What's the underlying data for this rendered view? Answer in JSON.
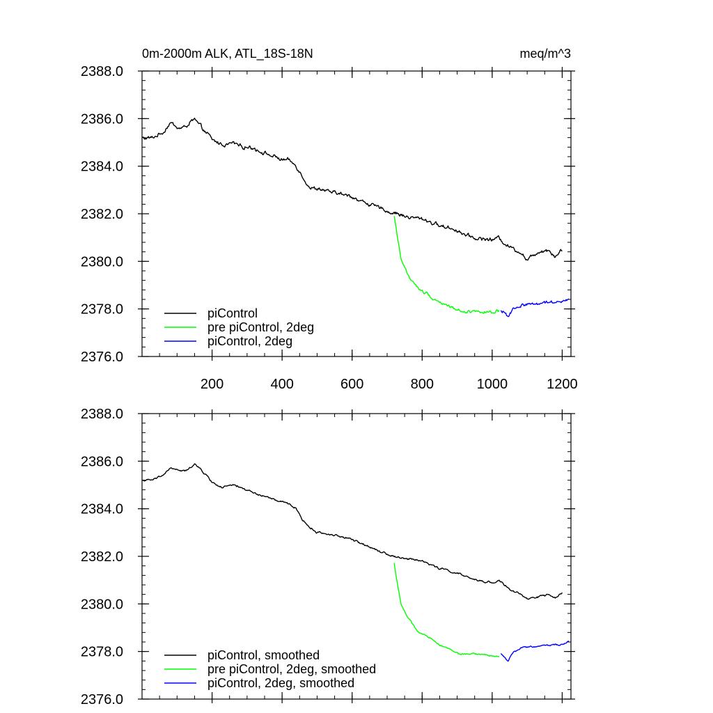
{
  "chart_data": [
    {
      "type": "line",
      "title_left": "0m-2000m ALK, ATL_18S-18N",
      "title_right": "meq/m^3",
      "xlim": [
        0,
        1225
      ],
      "ylim": [
        2376.0,
        2388.0
      ],
      "x_ticks": [
        200,
        400,
        600,
        800,
        1000,
        1200
      ],
      "x_tick_labels": [
        "200",
        "400",
        "600",
        "800",
        "1000",
        "1200"
      ],
      "y_ticks": [
        2376.0,
        2378.0,
        2380.0,
        2382.0,
        2384.0,
        2386.0,
        2388.0
      ],
      "y_tick_labels": [
        "2376.0",
        "2378.0",
        "2380.0",
        "2382.0",
        "2384.0",
        "2386.0",
        "2388.0"
      ],
      "legend_position": "bottom-left",
      "series": [
        {
          "name": "piControl",
          "color": "#000000",
          "noise": 0.18,
          "x": [
            0,
            30,
            60,
            80,
            110,
            130,
            150,
            170,
            190,
            200,
            230,
            260,
            300,
            330,
            360,
            390,
            420,
            440,
            460,
            480,
            500,
            550,
            600,
            650,
            700,
            750,
            800,
            850,
            900,
            950,
            1000,
            1020,
            1050,
            1080,
            1100,
            1130,
            1160,
            1180,
            1200
          ],
          "y": [
            2385.2,
            2385.2,
            2385.4,
            2385.8,
            2385.6,
            2385.7,
            2386.0,
            2385.6,
            2385.3,
            2385.1,
            2384.9,
            2385.0,
            2384.8,
            2384.7,
            2384.5,
            2384.3,
            2384.2,
            2384.0,
            2383.5,
            2383.1,
            2383.0,
            2382.9,
            2382.7,
            2382.4,
            2382.1,
            2381.9,
            2381.8,
            2381.5,
            2381.3,
            2381.0,
            2380.9,
            2381.0,
            2380.6,
            2380.4,
            2380.1,
            2380.4,
            2380.5,
            2380.2,
            2380.5
          ]
        },
        {
          "name": "pre piControl, 2deg",
          "color": "#00ff00",
          "noise": 0.14,
          "x": [
            720,
            730,
            740,
            760,
            790,
            820,
            850,
            880,
            910,
            940,
            970,
            1000,
            1020
          ],
          "y": [
            2381.9,
            2381.0,
            2380.1,
            2379.4,
            2378.8,
            2378.6,
            2378.3,
            2378.1,
            2377.9,
            2377.9,
            2377.9,
            2377.8,
            2377.9
          ]
        },
        {
          "name": "piControl, 2deg",
          "color": "#0000ff",
          "noise": 0.16,
          "x": [
            1025,
            1045,
            1060,
            1090,
            1120,
            1150,
            1180,
            1200,
            1220
          ],
          "y": [
            2377.9,
            2377.7,
            2378.0,
            2378.2,
            2378.2,
            2378.3,
            2378.3,
            2378.4,
            2378.4
          ]
        }
      ]
    },
    {
      "type": "line",
      "title_left": "",
      "title_right": "",
      "xlim": [
        0,
        1225
      ],
      "ylim": [
        2376.0,
        2388.0
      ],
      "x_ticks": [
        200,
        400,
        600,
        800,
        1000,
        1200
      ],
      "x_tick_labels": [],
      "y_ticks": [
        2376.0,
        2378.0,
        2380.0,
        2382.0,
        2384.0,
        2386.0,
        2388.0
      ],
      "y_tick_labels": [
        "2376.0",
        "2378.0",
        "2380.0",
        "2382.0",
        "2384.0",
        "2386.0",
        "2388.0"
      ],
      "legend_position": "bottom-left",
      "series": [
        {
          "name": "piControl, smoothed",
          "color": "#000000",
          "noise": 0.09,
          "x": [
            0,
            30,
            60,
            80,
            110,
            130,
            150,
            170,
            190,
            200,
            230,
            260,
            300,
            330,
            360,
            390,
            420,
            440,
            460,
            480,
            500,
            550,
            600,
            650,
            700,
            750,
            800,
            850,
            900,
            950,
            1000,
            1020,
            1050,
            1080,
            1100,
            1130,
            1160,
            1180,
            1200
          ],
          "y": [
            2385.2,
            2385.2,
            2385.4,
            2385.7,
            2385.6,
            2385.6,
            2385.9,
            2385.6,
            2385.3,
            2385.1,
            2384.9,
            2385.0,
            2384.8,
            2384.6,
            2384.5,
            2384.3,
            2384.2,
            2384.0,
            2383.5,
            2383.2,
            2383.0,
            2382.9,
            2382.7,
            2382.4,
            2382.1,
            2381.9,
            2381.8,
            2381.5,
            2381.3,
            2381.0,
            2380.9,
            2381.0,
            2380.6,
            2380.4,
            2380.2,
            2380.3,
            2380.4,
            2380.2,
            2380.5
          ]
        },
        {
          "name": "pre piControl, 2deg, smoothed",
          "color": "#00ff00",
          "noise": 0.07,
          "x": [
            720,
            730,
            740,
            760,
            790,
            820,
            850,
            880,
            910,
            940,
            970,
            1000,
            1020
          ],
          "y": [
            2381.7,
            2380.8,
            2380.0,
            2379.4,
            2378.8,
            2378.6,
            2378.3,
            2378.1,
            2377.9,
            2377.9,
            2377.9,
            2377.8,
            2377.8
          ]
        },
        {
          "name": "piControl, 2deg, smoothed",
          "color": "#0000ff",
          "noise": 0.08,
          "x": [
            1025,
            1045,
            1060,
            1090,
            1120,
            1150,
            1180,
            1200,
            1220
          ],
          "y": [
            2377.9,
            2377.6,
            2378.0,
            2378.2,
            2378.2,
            2378.3,
            2378.3,
            2378.3,
            2378.4
          ]
        }
      ]
    }
  ]
}
